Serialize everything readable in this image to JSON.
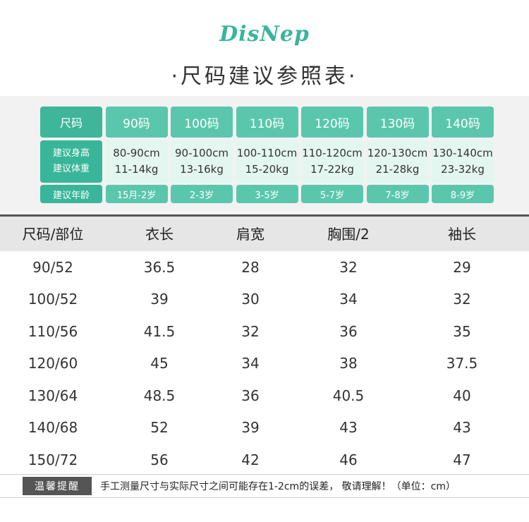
{
  "brand": {
    "logo_text": "DisNep",
    "logo_color": "#39b59c"
  },
  "title": "·尺码建议参照表·",
  "size_guide": {
    "row_labels": {
      "size": "尺码",
      "height": "建议身高",
      "weight": "建议体重",
      "age": "建议年龄"
    },
    "columns": [
      {
        "size": "90码",
        "height": "80-90cm",
        "weight": "11-14kg",
        "age": "15月-2岁"
      },
      {
        "size": "100码",
        "height": "90-100cm",
        "weight": "13-16kg",
        "age": "2-3岁"
      },
      {
        "size": "110码",
        "height": "100-110cm",
        "weight": "15-20kg",
        "age": "3-5岁"
      },
      {
        "size": "120码",
        "height": "110-120cm",
        "weight": "17-22kg",
        "age": "5-7岁"
      },
      {
        "size": "130码",
        "height": "120-130cm",
        "weight": "21-28kg",
        "age": "7-8岁"
      },
      {
        "size": "140码",
        "height": "130-140cm",
        "weight": "23-32kg",
        "age": "8-9岁"
      }
    ],
    "accent_color": "#5ac7ac"
  },
  "measure_table": {
    "headers": [
      "尺码/部位",
      "衣长",
      "肩宽",
      "胸围/2",
      "袖长"
    ],
    "rows": [
      [
        "90/52",
        "36.5",
        "28",
        "32",
        "29"
      ],
      [
        "100/52",
        "39",
        "30",
        "34",
        "32"
      ],
      [
        "110/56",
        "41.5",
        "32",
        "36",
        "35"
      ],
      [
        "120/60",
        "45",
        "34",
        "38",
        "37.5"
      ],
      [
        "130/64",
        "48.5",
        "36",
        "40.5",
        "40"
      ],
      [
        "140/68",
        "52",
        "39",
        "43",
        "43"
      ],
      [
        "150/72",
        "56",
        "42",
        "46",
        "47"
      ]
    ]
  },
  "footer": {
    "badge": "温馨提醒",
    "note": "手工测量尺寸与实际尺寸之间可能存在1-2cm的误差， 敬请理解！（单位：cm）"
  }
}
